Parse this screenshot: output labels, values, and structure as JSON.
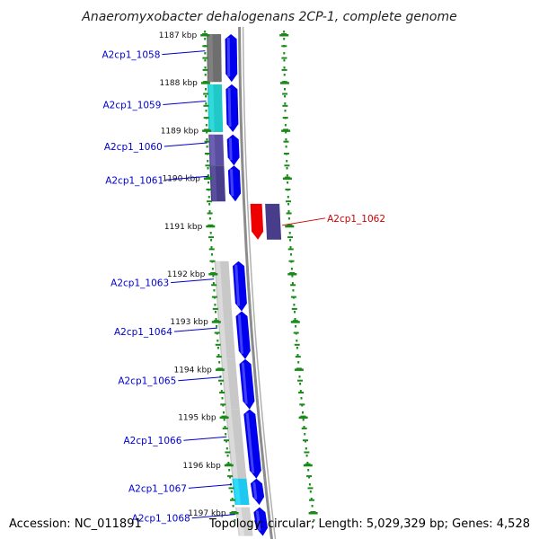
{
  "title": "Anaeromyxobacter dehalogenans 2CP-1, complete genome",
  "footer": {
    "accession": "Accession: NC_011891",
    "topology": "Topology: circular; Length: 5,029,329 bp; Genes: 4,528"
  },
  "ticks": [
    "1187 kbp",
    "1188 kbp",
    "1189 kbp",
    "1190 kbp",
    "1191 kbp",
    "1192 kbp",
    "1193 kbp",
    "1194 kbp",
    "1195 kbp",
    "1196 kbp",
    "1197 kbp"
  ],
  "genes": [
    {
      "name": "A2cp1_1058",
      "strand": "+",
      "start_kbp": 1187.0,
      "end_kbp": 1188.0,
      "color": "#6e6e6e",
      "label_color": "#0000cc"
    },
    {
      "name": "A2cp1_1059",
      "strand": "+",
      "start_kbp": 1188.05,
      "end_kbp": 1189.05,
      "color": "#20c8c8",
      "label_color": "#0000cc"
    },
    {
      "name": "A2cp1_1060",
      "strand": "+",
      "start_kbp": 1189.1,
      "end_kbp": 1189.75,
      "color": "#5a4ea0",
      "label_color": "#0000cc"
    },
    {
      "name": "A2cp1_1061",
      "strand": "+",
      "start_kbp": 1189.75,
      "end_kbp": 1190.5,
      "color": "#483d8b",
      "label_color": "#0000cc"
    },
    {
      "name": "A2cp1_1062",
      "strand": "-",
      "start_kbp": 1190.55,
      "end_kbp": 1191.3,
      "color": "#ee0000",
      "label_color": "#cc0000"
    },
    {
      "name": "A2cp1_1063",
      "strand": "+",
      "start_kbp": 1191.75,
      "end_kbp": 1192.8,
      "color": "#c8c8c8",
      "label_color": "#0000cc"
    },
    {
      "name": "A2cp1_1064",
      "strand": "+",
      "start_kbp": 1192.8,
      "end_kbp": 1193.8,
      "color": "#c8c8c8",
      "label_color": "#0000cc"
    },
    {
      "name": "A2cp1_1065",
      "strand": "+",
      "start_kbp": 1193.8,
      "end_kbp": 1194.85,
      "color": "#c8c8c8",
      "label_color": "#0000cc"
    },
    {
      "name": "A2cp1_1066",
      "strand": "+",
      "start_kbp": 1194.85,
      "end_kbp": 1196.3,
      "color": "#c8c8c8",
      "label_color": "#0000cc"
    },
    {
      "name": "A2cp1_1067",
      "strand": "+",
      "start_kbp": 1196.3,
      "end_kbp": 1196.85,
      "color": "#1ec8f0",
      "label_color": "#0000cc"
    },
    {
      "name": "A2cp1_1068",
      "strand": "+",
      "start_kbp": 1196.9,
      "end_kbp": 1197.5,
      "color": "#d0d0d0",
      "label_color": "#0000cc"
    }
  ],
  "colors": {
    "forward_arrow": "#0000ee",
    "reverse_outer": "#483d8b",
    "backbone": "#8c8c8c",
    "tick_marks": "#1a8a1a"
  }
}
